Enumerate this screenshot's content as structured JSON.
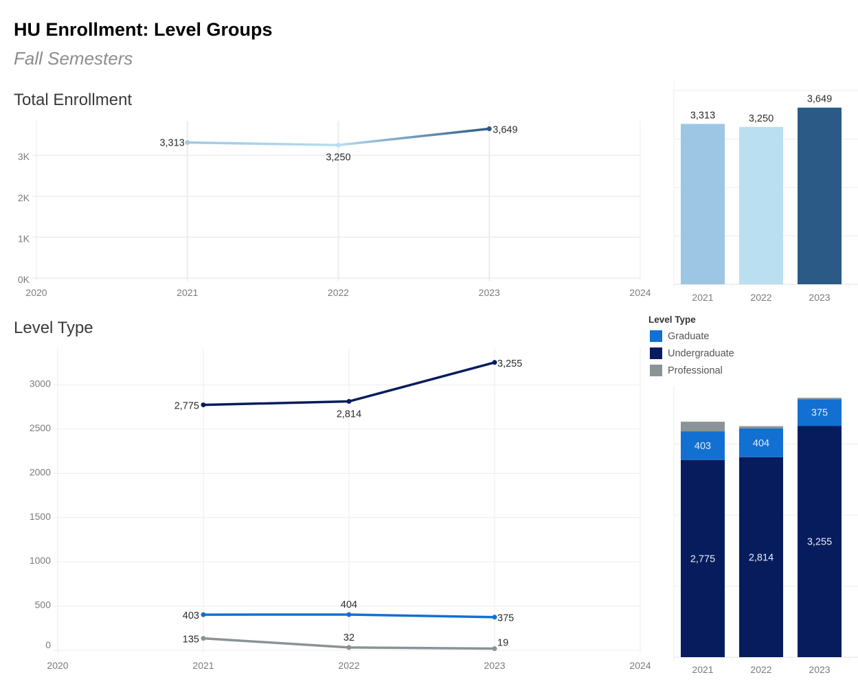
{
  "header": {
    "title": "HU Enrollment: Level Groups",
    "subtitle": "Fall Semesters"
  },
  "sections": {
    "total_title": "Total Enrollment",
    "level_title": "Level Type"
  },
  "legend": {
    "title": "Level Type",
    "items": [
      {
        "label": "Graduate",
        "color": "#1170d2"
      },
      {
        "label": "Undergraduate",
        "color": "#061c5c"
      },
      {
        "label": "Professional",
        "color": "#8a9396"
      }
    ]
  },
  "chart_data": [
    {
      "id": "total-line",
      "type": "line",
      "title": "Total Enrollment",
      "xlabel": "",
      "ylabel": "",
      "x": [
        2021,
        2022,
        2023
      ],
      "x_ticks": [
        "2020",
        "2021",
        "2022",
        "2023",
        "2024"
      ],
      "xlim": [
        2020,
        2024
      ],
      "y_ticks": [
        "0K",
        "1K",
        "2K",
        "3K"
      ],
      "ylim": [
        0,
        3800
      ],
      "grid": true,
      "series": [
        {
          "name": "Total",
          "values": [
            3313,
            3250,
            3649
          ],
          "labels": [
            "3,313",
            "3,250",
            "3,649"
          ],
          "point_colors": [
            "#9dc8e6",
            "#b9def0",
            "#2b5a86"
          ]
        }
      ]
    },
    {
      "id": "total-bar",
      "type": "bar",
      "title": "",
      "categories": [
        "2021",
        "2022",
        "2023"
      ],
      "values": [
        3313,
        3250,
        3649
      ],
      "labels": [
        "3,313",
        "3,250",
        "3,649"
      ],
      "colors": [
        "#9cc6e4",
        "#b9dff1",
        "#2b5a86"
      ],
      "ylim": [
        0,
        4000
      ],
      "grid": true
    },
    {
      "id": "level-line",
      "type": "line",
      "title": "Level Type",
      "xlabel": "",
      "ylabel": "",
      "x": [
        2021,
        2022,
        2023
      ],
      "x_ticks": [
        "2020",
        "2021",
        "2022",
        "2023",
        "2024"
      ],
      "xlim": [
        2020,
        2024
      ],
      "y_ticks": [
        "0",
        "500",
        "1000",
        "1500",
        "2000",
        "2500",
        "3000"
      ],
      "ylim": [
        0,
        3450
      ],
      "grid": true,
      "legend": "right",
      "series": [
        {
          "name": "Undergraduate",
          "values": [
            2775,
            2814,
            3255
          ],
          "labels": [
            "2,775",
            "2,814",
            "3,255"
          ],
          "color": "#061c5c"
        },
        {
          "name": "Graduate",
          "values": [
            403,
            404,
            375
          ],
          "labels": [
            "403",
            "404",
            "375"
          ],
          "color": "#1170d2"
        },
        {
          "name": "Professional",
          "values": [
            135,
            32,
            19
          ],
          "labels": [
            "135",
            "32",
            "19"
          ],
          "color": "#8a9396"
        }
      ]
    },
    {
      "id": "level-stacked-bar",
      "type": "bar",
      "stacked": true,
      "title": "",
      "categories": [
        "2021",
        "2022",
        "2023"
      ],
      "ylim": [
        0,
        3700
      ],
      "grid": true,
      "series": [
        {
          "name": "Undergraduate",
          "values": [
            2775,
            2814,
            3255
          ],
          "labels": [
            "2,775",
            "2,814",
            "3,255"
          ],
          "color": "#061c5c"
        },
        {
          "name": "Graduate",
          "values": [
            403,
            404,
            375
          ],
          "labels": [
            "403",
            "404",
            "375"
          ],
          "color": "#1170d2"
        },
        {
          "name": "Professional",
          "values": [
            135,
            32,
            19
          ],
          "labels": [
            "",
            "",
            ""
          ],
          "color": "#8a9396"
        }
      ]
    }
  ]
}
